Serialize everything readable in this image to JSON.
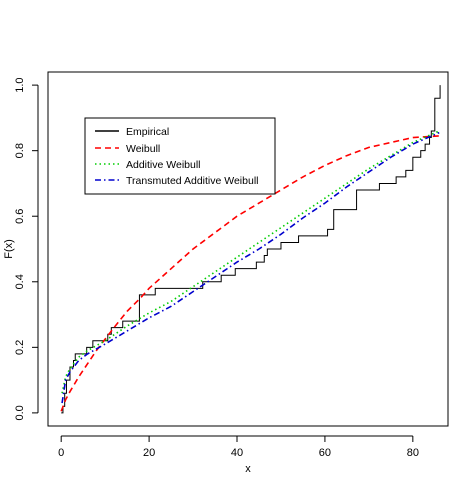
{
  "chart_data": {
    "type": "line",
    "title": "",
    "xlabel": "x",
    "ylabel": "F(x)",
    "xlim": [
      -3,
      88
    ],
    "ylim": [
      -0.04,
      1.04
    ],
    "x_ticks": [
      0,
      20,
      40,
      60,
      80
    ],
    "y_ticks": [
      0.0,
      0.2,
      0.4,
      0.6,
      0.8,
      1.0
    ],
    "x_tick_labels": [
      "0",
      "20",
      "40",
      "60",
      "80"
    ],
    "y_tick_labels": [
      "0.0",
      "0.2",
      "0.4",
      "0.6",
      "0.8",
      "1.0"
    ],
    "grid": false,
    "legend_placement": "top-left",
    "series": [
      {
        "name": "Empirical",
        "kind": "step",
        "color": "#000000",
        "dash": "solid",
        "x": [
          0.4,
          0.8,
          1.2,
          2.0,
          2.8,
          3.2,
          5.8,
          7.2,
          10.6,
          11.4,
          12.0,
          14.0,
          17.8,
          18.8,
          21.4,
          31.6,
          32.2,
          36.4,
          39.6,
          44.4,
          46.2,
          46.9,
          47.6,
          50.0,
          54.0,
          60.6,
          62.0,
          67.2,
          71.6,
          72.4,
          76.2,
          78.4,
          80.0,
          81.8,
          82.8,
          83.8,
          84.2,
          85.0,
          85.6,
          86.2
        ],
        "y": [
          0.02,
          0.06,
          0.1,
          0.14,
          0.16,
          0.18,
          0.2,
          0.22,
          0.24,
          0.26,
          0.26,
          0.28,
          0.36,
          0.36,
          0.38,
          0.38,
          0.4,
          0.42,
          0.44,
          0.46,
          0.48,
          0.5,
          0.5,
          0.52,
          0.54,
          0.56,
          0.62,
          0.68,
          0.68,
          0.7,
          0.72,
          0.74,
          0.78,
          0.8,
          0.82,
          0.84,
          0.86,
          0.96,
          0.96,
          1.0
        ]
      },
      {
        "name": "Weibull",
        "kind": "line",
        "color": "#ff0000",
        "dash": "dashed",
        "x": [
          0,
          1,
          2,
          4,
          6,
          8,
          10,
          12,
          15,
          18,
          20,
          25,
          30,
          35,
          40,
          45,
          50,
          55,
          60,
          65,
          70,
          75,
          80,
          86
        ],
        "y": [
          0.005,
          0.04,
          0.065,
          0.11,
          0.15,
          0.19,
          0.225,
          0.26,
          0.31,
          0.35,
          0.38,
          0.44,
          0.5,
          0.55,
          0.6,
          0.64,
          0.68,
          0.72,
          0.755,
          0.785,
          0.81,
          0.825,
          0.84,
          0.845
        ]
      },
      {
        "name": "Additive Weibull",
        "kind": "line",
        "color": "#00cd00",
        "dash": "dotted",
        "x": [
          0.2,
          1,
          2,
          4,
          6,
          8,
          10,
          15,
          20,
          25,
          30,
          35,
          40,
          45,
          50,
          55,
          60,
          65,
          70,
          75,
          80,
          86
        ],
        "y": [
          0.06,
          0.11,
          0.135,
          0.17,
          0.19,
          0.205,
          0.22,
          0.265,
          0.305,
          0.34,
          0.385,
          0.43,
          0.475,
          0.52,
          0.565,
          0.61,
          0.655,
          0.7,
          0.745,
          0.785,
          0.825,
          0.86
        ]
      },
      {
        "name": "Transmuted Additive Weibull",
        "kind": "line",
        "color": "#0000cd",
        "dash": "dotdash",
        "x": [
          0.2,
          1,
          2,
          4,
          6,
          8,
          10,
          15,
          20,
          25,
          30,
          35,
          40,
          45,
          50,
          55,
          60,
          65,
          70,
          75,
          80,
          86
        ],
        "y": [
          0.03,
          0.1,
          0.125,
          0.16,
          0.18,
          0.195,
          0.21,
          0.25,
          0.29,
          0.325,
          0.37,
          0.415,
          0.46,
          0.5,
          0.545,
          0.595,
          0.64,
          0.69,
          0.735,
          0.78,
          0.82,
          0.855
        ]
      }
    ]
  }
}
